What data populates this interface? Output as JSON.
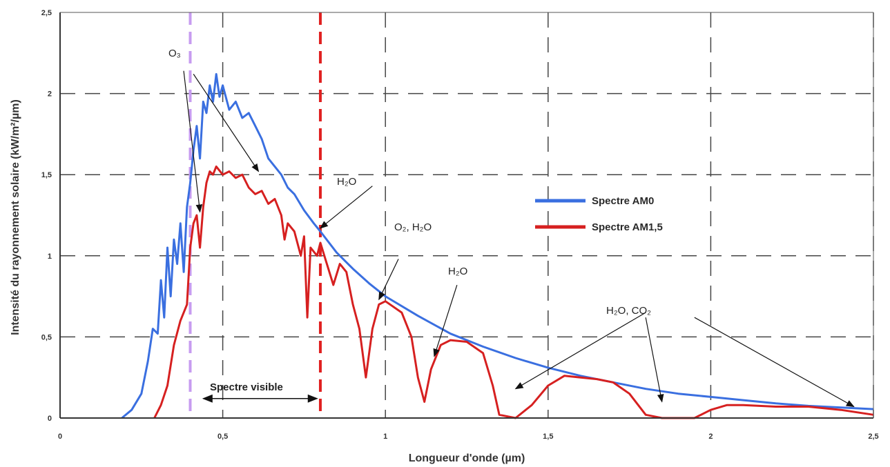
{
  "chart_data": {
    "type": "line",
    "xlabel": "Longueur d'onde (µm)",
    "ylabel": "Intensité du rayonnement solaire (kW/m²/µm)",
    "xlim": [
      0,
      2.5
    ],
    "ylim": [
      0,
      2.5
    ],
    "x_ticks": [
      "0",
      "0,5",
      "1",
      "1,5",
      "2",
      "2,5"
    ],
    "y_ticks": [
      "0",
      "0,5",
      "1",
      "1,5",
      "2",
      "2,5"
    ],
    "grid": true,
    "legend_position": "right",
    "series": [
      {
        "name": "Spectre AM0",
        "color": "#3a6fe0",
        "points": [
          [
            0.19,
            0.0
          ],
          [
            0.22,
            0.05
          ],
          [
            0.25,
            0.15
          ],
          [
            0.27,
            0.35
          ],
          [
            0.285,
            0.55
          ],
          [
            0.3,
            0.52
          ],
          [
            0.31,
            0.85
          ],
          [
            0.32,
            0.62
          ],
          [
            0.33,
            1.05
          ],
          [
            0.34,
            0.75
          ],
          [
            0.35,
            1.1
          ],
          [
            0.36,
            0.95
          ],
          [
            0.37,
            1.2
          ],
          [
            0.38,
            0.9
          ],
          [
            0.39,
            1.3
          ],
          [
            0.4,
            1.45
          ],
          [
            0.41,
            1.65
          ],
          [
            0.42,
            1.8
          ],
          [
            0.43,
            1.6
          ],
          [
            0.44,
            1.95
          ],
          [
            0.45,
            1.88
          ],
          [
            0.46,
            2.05
          ],
          [
            0.47,
            1.95
          ],
          [
            0.48,
            2.12
          ],
          [
            0.49,
            1.98
          ],
          [
            0.5,
            2.05
          ],
          [
            0.52,
            1.9
          ],
          [
            0.54,
            1.95
          ],
          [
            0.56,
            1.85
          ],
          [
            0.58,
            1.88
          ],
          [
            0.6,
            1.8
          ],
          [
            0.62,
            1.72
          ],
          [
            0.64,
            1.6
          ],
          [
            0.66,
            1.55
          ],
          [
            0.68,
            1.5
          ],
          [
            0.7,
            1.42
          ],
          [
            0.72,
            1.38
          ],
          [
            0.75,
            1.28
          ],
          [
            0.78,
            1.2
          ],
          [
            0.8,
            1.15
          ],
          [
            0.85,
            1.02
          ],
          [
            0.9,
            0.92
          ],
          [
            0.95,
            0.83
          ],
          [
            1.0,
            0.75
          ],
          [
            1.1,
            0.63
          ],
          [
            1.2,
            0.52
          ],
          [
            1.3,
            0.44
          ],
          [
            1.4,
            0.37
          ],
          [
            1.5,
            0.31
          ],
          [
            1.6,
            0.26
          ],
          [
            1.7,
            0.22
          ],
          [
            1.8,
            0.18
          ],
          [
            1.9,
            0.15
          ],
          [
            2.0,
            0.13
          ],
          [
            2.1,
            0.11
          ],
          [
            2.2,
            0.09
          ],
          [
            2.3,
            0.075
          ],
          [
            2.4,
            0.065
          ],
          [
            2.5,
            0.055
          ]
        ]
      },
      {
        "name": "Spectre AM1,5",
        "color": "#d62020",
        "points": [
          [
            0.29,
            0.0
          ],
          [
            0.31,
            0.08
          ],
          [
            0.33,
            0.2
          ],
          [
            0.35,
            0.45
          ],
          [
            0.37,
            0.6
          ],
          [
            0.39,
            0.7
          ],
          [
            0.4,
            1.05
          ],
          [
            0.41,
            1.2
          ],
          [
            0.42,
            1.25
          ],
          [
            0.43,
            1.05
          ],
          [
            0.44,
            1.3
          ],
          [
            0.45,
            1.45
          ],
          [
            0.46,
            1.52
          ],
          [
            0.47,
            1.5
          ],
          [
            0.48,
            1.55
          ],
          [
            0.5,
            1.5
          ],
          [
            0.52,
            1.52
          ],
          [
            0.54,
            1.48
          ],
          [
            0.56,
            1.5
          ],
          [
            0.58,
            1.42
          ],
          [
            0.6,
            1.38
          ],
          [
            0.62,
            1.4
          ],
          [
            0.64,
            1.32
          ],
          [
            0.66,
            1.35
          ],
          [
            0.68,
            1.25
          ],
          [
            0.69,
            1.1
          ],
          [
            0.7,
            1.2
          ],
          [
            0.72,
            1.15
          ],
          [
            0.74,
            1.0
          ],
          [
            0.75,
            1.12
          ],
          [
            0.76,
            0.62
          ],
          [
            0.77,
            1.05
          ],
          [
            0.79,
            1.0
          ],
          [
            0.8,
            1.08
          ],
          [
            0.82,
            0.95
          ],
          [
            0.84,
            0.82
          ],
          [
            0.86,
            0.95
          ],
          [
            0.88,
            0.9
          ],
          [
            0.9,
            0.7
          ],
          [
            0.92,
            0.55
          ],
          [
            0.94,
            0.25
          ],
          [
            0.96,
            0.55
          ],
          [
            0.98,
            0.7
          ],
          [
            1.0,
            0.72
          ],
          [
            1.05,
            0.65
          ],
          [
            1.08,
            0.5
          ],
          [
            1.1,
            0.25
          ],
          [
            1.12,
            0.1
          ],
          [
            1.14,
            0.3
          ],
          [
            1.17,
            0.45
          ],
          [
            1.2,
            0.48
          ],
          [
            1.25,
            0.47
          ],
          [
            1.3,
            0.4
          ],
          [
            1.33,
            0.2
          ],
          [
            1.35,
            0.02
          ],
          [
            1.4,
            0.0
          ],
          [
            1.45,
            0.08
          ],
          [
            1.5,
            0.2
          ],
          [
            1.55,
            0.26
          ],
          [
            1.6,
            0.25
          ],
          [
            1.65,
            0.24
          ],
          [
            1.7,
            0.22
          ],
          [
            1.75,
            0.15
          ],
          [
            1.8,
            0.02
          ],
          [
            1.85,
            0.0
          ],
          [
            1.95,
            0.0
          ],
          [
            2.0,
            0.05
          ],
          [
            2.05,
            0.08
          ],
          [
            2.1,
            0.08
          ],
          [
            2.2,
            0.07
          ],
          [
            2.3,
            0.07
          ],
          [
            2.4,
            0.05
          ],
          [
            2.5,
            0.02
          ]
        ]
      }
    ],
    "vertical_markers": [
      {
        "x": 0.4,
        "color": "#c79cf0",
        "style": "dashed"
      },
      {
        "x": 0.8,
        "color": "#e02020",
        "style": "dashed"
      }
    ],
    "annotations": [
      {
        "text": "O₃",
        "id": "o3"
      },
      {
        "text": "H₂O",
        "id": "h2o-1"
      },
      {
        "text": "O₂, H₂O",
        "id": "o2-h2o"
      },
      {
        "text": "H₂O",
        "id": "h2o-2"
      },
      {
        "text": "H₂O, CO₂",
        "id": "h2o-co2"
      },
      {
        "text": "Spectre visible",
        "id": "visible-spectrum"
      }
    ]
  }
}
